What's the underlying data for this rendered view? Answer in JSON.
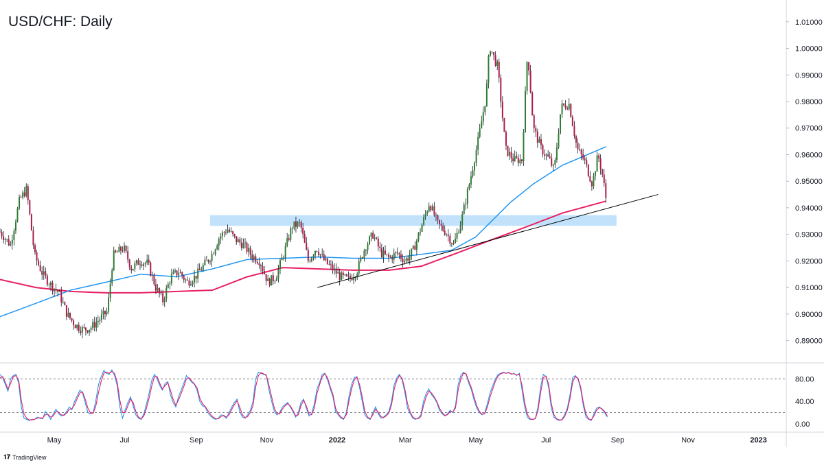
{
  "chart_title": "USD/CHF: Daily",
  "watermark": "TradingView",
  "chart_data": [
    {
      "type": "candlestick",
      "title": "USD/CHF: Daily",
      "x_tick_labels": [
        "May",
        "Jul",
        "Sep",
        "Nov",
        "2022",
        "Mar",
        "May",
        "Jul",
        "Sep",
        "Nov",
        "2023"
      ],
      "y_tick_labels": [
        "0.89000",
        "0.90000",
        "0.91000",
        "0.92000",
        "0.93000",
        "0.94000",
        "0.95000",
        "0.96000",
        "0.97000",
        "0.98000",
        "0.99000",
        "1.00000",
        "1.01000"
      ],
      "ylim": [
        0.8855,
        1.0115
      ],
      "colors": {
        "up": "#2e7d32",
        "down": "#ab1c4a",
        "sma_fast": "#2196f3",
        "sma_slow": "#e91e63",
        "zone": "#bbdefb",
        "trendline": "#000000"
      },
      "resistance_zone": {
        "y_low": 0.9332,
        "y_high": 0.9372,
        "x_start": "2021-09-13",
        "x_end": "2022-08-31"
      },
      "trendline": {
        "from": [
          "2021-12-15",
          0.91
        ],
        "to": [
          "2022-10-06",
          0.945
        ]
      },
      "price_path": [
        [
          "2021-03-15",
          0.931
        ],
        [
          "2021-03-24",
          0.926
        ],
        [
          "2021-04-01",
          0.943
        ],
        [
          "2021-04-07",
          0.947
        ],
        [
          "2021-04-14",
          0.922
        ],
        [
          "2021-04-21",
          0.915
        ],
        [
          "2021-04-28",
          0.911
        ],
        [
          "2021-05-05",
          0.908
        ],
        [
          "2021-05-12",
          0.9
        ],
        [
          "2021-05-19",
          0.896
        ],
        [
          "2021-05-26",
          0.894
        ],
        [
          "2021-06-02",
          0.895
        ],
        [
          "2021-06-09",
          0.898
        ],
        [
          "2021-06-16",
          0.901
        ],
        [
          "2021-06-21",
          0.922
        ],
        [
          "2021-06-30",
          0.925
        ],
        [
          "2021-07-07",
          0.917
        ],
        [
          "2021-07-14",
          0.92
        ],
        [
          "2021-07-21",
          0.919
        ],
        [
          "2021-07-28",
          0.91
        ],
        [
          "2021-08-03",
          0.905
        ],
        [
          "2021-08-10",
          0.914
        ],
        [
          "2021-08-17",
          0.916
        ],
        [
          "2021-08-24",
          0.912
        ],
        [
          "2021-08-31",
          0.914
        ],
        [
          "2021-09-07",
          0.918
        ],
        [
          "2021-09-14",
          0.922
        ],
        [
          "2021-09-21",
          0.929
        ],
        [
          "2021-09-28",
          0.932
        ],
        [
          "2021-10-05",
          0.928
        ],
        [
          "2021-10-12",
          0.926
        ],
        [
          "2021-10-19",
          0.922
        ],
        [
          "2021-10-26",
          0.92
        ],
        [
          "2021-11-02",
          0.912
        ],
        [
          "2021-11-09",
          0.914
        ],
        [
          "2021-11-16",
          0.923
        ],
        [
          "2021-11-23",
          0.933
        ],
        [
          "2021-11-30",
          0.934
        ],
        [
          "2021-12-07",
          0.92
        ],
        [
          "2021-12-14",
          0.925
        ],
        [
          "2021-12-21",
          0.92
        ],
        [
          "2021-12-28",
          0.917
        ],
        [
          "2022-01-04",
          0.914
        ],
        [
          "2022-01-11",
          0.913
        ],
        [
          "2022-01-18",
          0.916
        ],
        [
          "2022-01-25",
          0.925
        ],
        [
          "2022-02-01",
          0.93
        ],
        [
          "2022-02-08",
          0.923
        ],
        [
          "2022-02-15",
          0.921
        ],
        [
          "2022-02-22",
          0.923
        ],
        [
          "2022-03-01",
          0.92
        ],
        [
          "2022-03-08",
          0.924
        ],
        [
          "2022-03-15",
          0.933
        ],
        [
          "2022-03-22",
          0.942
        ],
        [
          "2022-03-29",
          0.934
        ],
        [
          "2022-04-05",
          0.931
        ],
        [
          "2022-04-12",
          0.926
        ],
        [
          "2022-04-19",
          0.936
        ],
        [
          "2022-04-26",
          0.95
        ],
        [
          "2022-05-03",
          0.965
        ],
        [
          "2022-05-10",
          0.982
        ],
        [
          "2022-05-13",
          1.001
        ],
        [
          "2022-05-20",
          0.993
        ],
        [
          "2022-05-27",
          0.962
        ],
        [
          "2022-06-03",
          0.958
        ],
        [
          "2022-06-10",
          0.958
        ],
        [
          "2022-06-15",
          0.999
        ],
        [
          "2022-06-20",
          0.97
        ],
        [
          "2022-06-27",
          0.962
        ],
        [
          "2022-07-04",
          0.958
        ],
        [
          "2022-07-08",
          0.954
        ],
        [
          "2022-07-14",
          0.978
        ],
        [
          "2022-07-21",
          0.979
        ],
        [
          "2022-07-28",
          0.962
        ],
        [
          "2022-08-03",
          0.958
        ],
        [
          "2022-08-10",
          0.949
        ],
        [
          "2022-08-15",
          0.96
        ],
        [
          "2022-08-19",
          0.952
        ],
        [
          "2022-08-23",
          0.94
        ]
      ],
      "sma_fast": [
        [
          "2021-03-15",
          0.899
        ],
        [
          "2021-04-15",
          0.904
        ],
        [
          "2021-05-15",
          0.909
        ],
        [
          "2021-06-15",
          0.912
        ],
        [
          "2021-07-15",
          0.915
        ],
        [
          "2021-08-15",
          0.914
        ],
        [
          "2021-09-15",
          0.917
        ],
        [
          "2021-10-15",
          0.9205
        ],
        [
          "2021-11-15",
          0.921
        ],
        [
          "2021-12-15",
          0.9215
        ],
        [
          "2022-01-15",
          0.921
        ],
        [
          "2022-02-15",
          0.921
        ],
        [
          "2022-03-15",
          0.9225
        ],
        [
          "2022-04-10",
          0.924
        ],
        [
          "2022-05-01",
          0.929
        ],
        [
          "2022-05-31",
          0.942
        ],
        [
          "2022-06-20",
          0.949
        ],
        [
          "2022-07-15",
          0.956
        ],
        [
          "2022-08-22",
          0.963
        ]
      ],
      "sma_slow": [
        [
          "2021-03-15",
          0.913
        ],
        [
          "2021-04-15",
          0.91
        ],
        [
          "2021-05-15",
          0.9085
        ],
        [
          "2021-06-15",
          0.908
        ],
        [
          "2021-07-15",
          0.908
        ],
        [
          "2021-08-15",
          0.9085
        ],
        [
          "2021-09-15",
          0.909
        ],
        [
          "2021-10-15",
          0.914
        ],
        [
          "2021-11-15",
          0.9175
        ],
        [
          "2021-12-15",
          0.917
        ],
        [
          "2022-01-15",
          0.9165
        ],
        [
          "2022-02-15",
          0.9165
        ],
        [
          "2022-03-15",
          0.918
        ],
        [
          "2022-04-15",
          0.923
        ],
        [
          "2022-05-15",
          0.928
        ],
        [
          "2022-06-15",
          0.933
        ],
        [
          "2022-07-15",
          0.938
        ],
        [
          "2022-08-22",
          0.9425
        ]
      ]
    },
    {
      "type": "line",
      "title": "",
      "y_tick_labels": [
        "0.00",
        "40.00",
        "80.00"
      ],
      "ylim": [
        -5,
        100
      ],
      "levels": [
        20,
        80
      ],
      "colors": {
        "k": "#2196f3",
        "d": "#e91e63",
        "level": "#787b86"
      },
      "series": [
        {
          "values": [
            88,
            82,
            70,
            58,
            80,
            86,
            88,
            72,
            30,
            10,
            8,
            6,
            8,
            8,
            12,
            10,
            9,
            22,
            16,
            8,
            18,
            26,
            18,
            14,
            16,
            22,
            30,
            25,
            40,
            50,
            60,
            55,
            38,
            20,
            18,
            20,
            42,
            70,
            84,
            95,
            90,
            88,
            96,
            86,
            68,
            30,
            10,
            25,
            38,
            48,
            32,
            16,
            10,
            8,
            18,
            35,
            55,
            78,
            88,
            80,
            68,
            60,
            72,
            75,
            52,
            38,
            30,
            48,
            60,
            72,
            86,
            80,
            74,
            70,
            60,
            40,
            32,
            30,
            20,
            14,
            10,
            8,
            10,
            16,
            14,
            10,
            20,
            30,
            38,
            44,
            22,
            12,
            10,
            16,
            24,
            40,
            80,
            92,
            90,
            88,
            86,
            60,
            40,
            22,
            16,
            20,
            30,
            34,
            38,
            30,
            22,
            12,
            20,
            38,
            44,
            28,
            14,
            18,
            35,
            62,
            74,
            88,
            90,
            78,
            62,
            48,
            22,
            16,
            10,
            8,
            20,
            48,
            70,
            82,
            84,
            64,
            40,
            16,
            10,
            8,
            20,
            30,
            18,
            10,
            12,
            16,
            22,
            40,
            70,
            82,
            88,
            78,
            56,
            28,
            18,
            10,
            8,
            10,
            16,
            40,
            54,
            62,
            52,
            46,
            38,
            24,
            18,
            14,
            18,
            24,
            20,
            32,
            70,
            86,
            92,
            88,
            72,
            60,
            42,
            28,
            20,
            16,
            20,
            36,
            55,
            68,
            80,
            88,
            90,
            92,
            90,
            92,
            88,
            90,
            86,
            90,
            60,
            30,
            12,
            8,
            8,
            10,
            30,
            66,
            88,
            84,
            64,
            28,
            12,
            8,
            6,
            8,
            16,
            28,
            52,
            82,
            86,
            80,
            62,
            32,
            12,
            8,
            6,
            18,
            28,
            30,
            26,
            20,
            12
          ]
        },
        {
          "values": [
            82,
            84,
            74,
            62,
            72,
            84,
            86,
            78,
            42,
            18,
            10,
            7,
            7,
            8,
            10,
            11,
            10,
            16,
            17,
            12,
            14,
            22,
            21,
            16,
            15,
            19,
            26,
            27,
            34,
            45,
            55,
            57,
            44,
            28,
            19,
            19,
            32,
            56,
            76,
            90,
            92,
            90,
            93,
            90,
            74,
            42,
            20,
            20,
            32,
            44,
            38,
            22,
            12,
            9,
            14,
            28,
            46,
            68,
            84,
            84,
            72,
            62,
            68,
            73,
            60,
            44,
            33,
            42,
            54,
            66,
            80,
            82,
            76,
            71,
            64,
            46,
            36,
            31,
            24,
            17,
            12,
            9,
            9,
            13,
            15,
            12,
            16,
            26,
            34,
            41,
            30,
            16,
            11,
            13,
            20,
            33,
            66,
            86,
            91,
            89,
            87,
            68,
            48,
            28,
            18,
            18,
            26,
            32,
            36,
            32,
            24,
            14,
            16,
            32,
            42,
            32,
            18,
            16,
            28,
            54,
            70,
            84,
            89,
            82,
            66,
            52,
            28,
            18,
            12,
            9,
            16,
            40,
            62,
            78,
            83,
            70,
            48,
            22,
            12,
            9,
            16,
            26,
            21,
            13,
            11,
            14,
            19,
            34,
            62,
            78,
            86,
            81,
            62,
            36,
            21,
            12,
            9,
            9,
            13,
            32,
            48,
            58,
            55,
            48,
            40,
            28,
            20,
            15,
            16,
            22,
            21,
            28,
            60,
            80,
            90,
            89,
            76,
            64,
            48,
            32,
            22,
            17,
            18,
            30,
            48,
            62,
            76,
            85,
            89,
            91,
            90,
            91,
            89,
            89,
            87,
            88,
            68,
            38,
            17,
            9,
            8,
            9,
            24,
            56,
            82,
            85,
            70,
            36,
            16,
            9,
            7,
            7,
            13,
            24,
            45,
            74,
            84,
            81,
            66,
            38,
            17,
            9,
            7,
            14,
            24,
            29,
            27,
            22,
            14
          ]
        }
      ]
    }
  ]
}
